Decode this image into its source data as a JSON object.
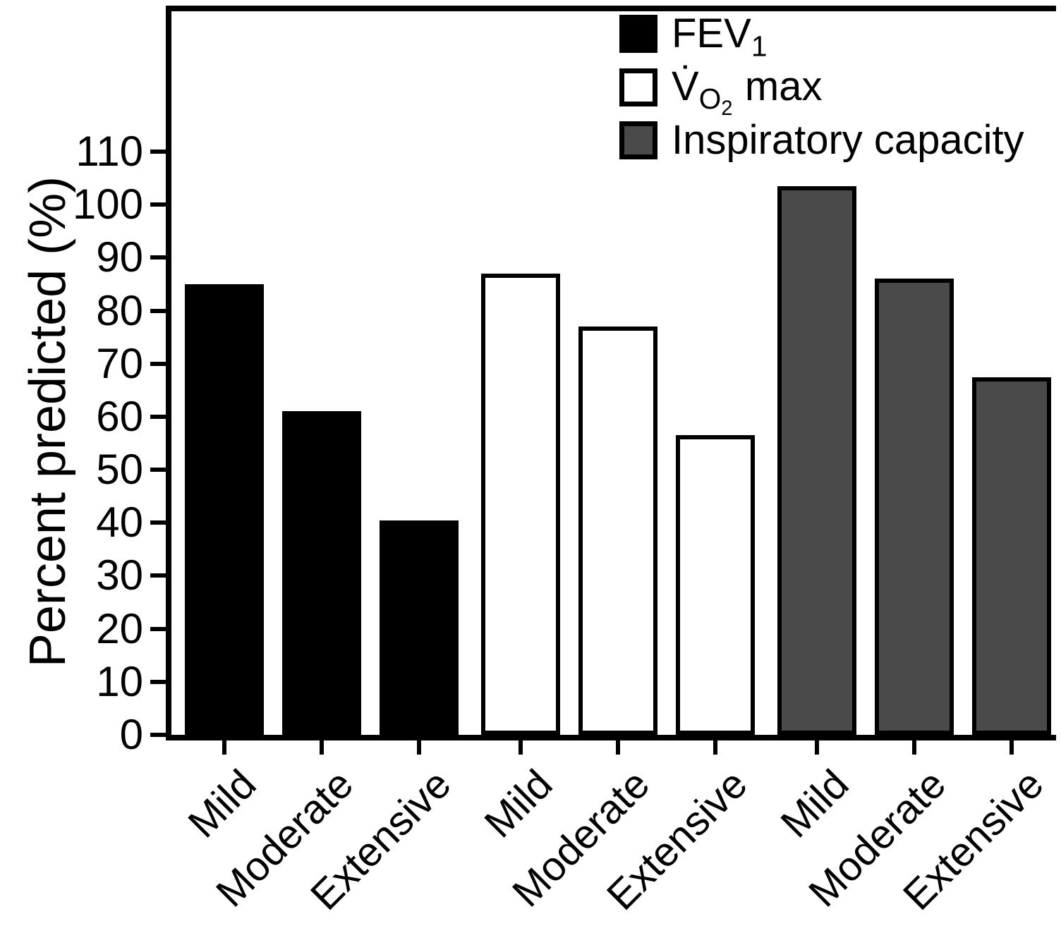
{
  "chart_data": {
    "type": "bar",
    "title": "",
    "xlabel": "",
    "ylabel": "Percent predicted (%)",
    "ylim": [
      0,
      110
    ],
    "ytick_step": 10,
    "grid": false,
    "legend_position": "top-right-inside",
    "categories": [
      "Mild",
      "Moderate",
      "Extensive",
      "Mild",
      "Moderate",
      "Extensive",
      "Mild",
      "Moderate",
      "Extensive"
    ],
    "series": [
      {
        "name": "FEV1",
        "color": "#000000",
        "values": [
          85,
          61,
          40.5
        ]
      },
      {
        "name": "VO2 max",
        "color": "#ffffff",
        "values": [
          87,
          77,
          56.5
        ]
      },
      {
        "name": "Inspiratory capacity",
        "color": "#4a4a4a",
        "values": [
          103.5,
          86,
          67.5
        ]
      }
    ]
  },
  "legend": {
    "items": [
      {
        "label": "FEV",
        "sub": "1"
      },
      {
        "label": "V̇",
        "sub": "O",
        "subsub": "2",
        "suffix": "max"
      },
      {
        "label": "Inspiratory capacity"
      }
    ]
  }
}
